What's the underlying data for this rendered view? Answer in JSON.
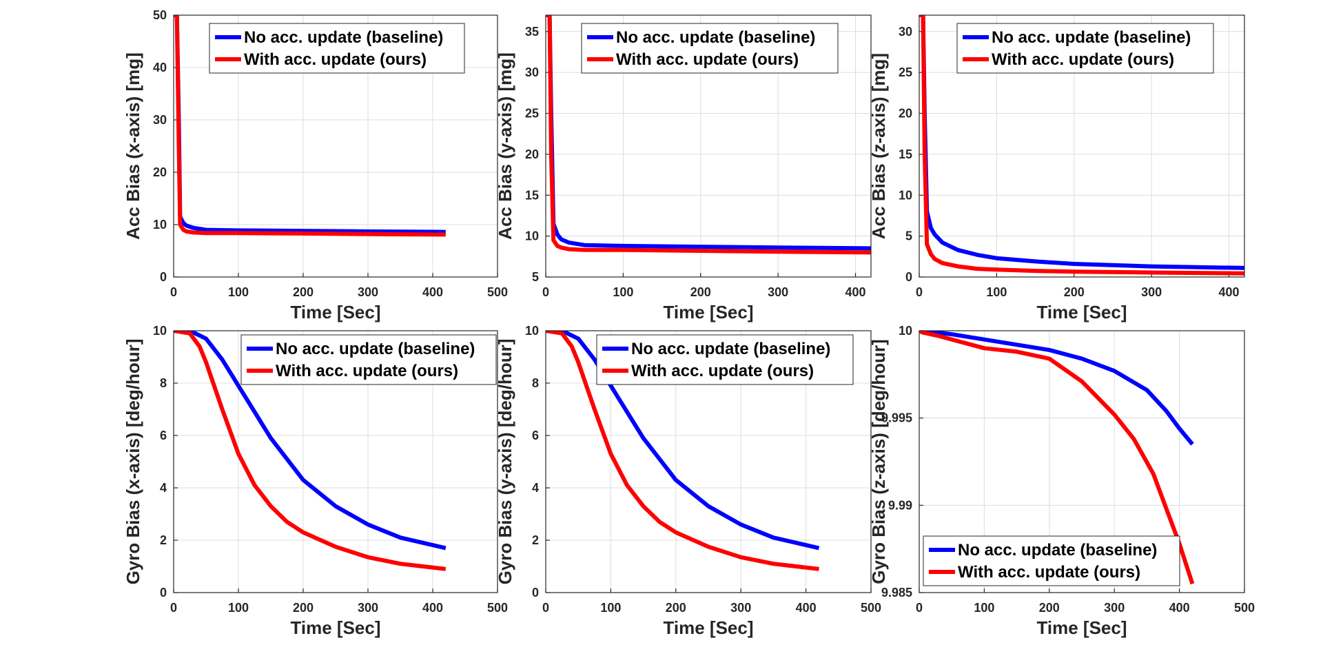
{
  "figure": {
    "colors": {
      "baseline": "#0000ff",
      "ours": "#ff0000",
      "grid": "#dcdcdc",
      "axis": "#262626"
    }
  },
  "chart_data": [
    {
      "id": "acc-x",
      "type": "line",
      "xlabel": "Time [Sec]",
      "ylabel": "Acc Bias (x-axis) [mg]",
      "xlim": [
        0,
        500
      ],
      "ylim": [
        0,
        50
      ],
      "xticks": [
        0,
        100,
        200,
        300,
        400,
        500
      ],
      "yticks": [
        0,
        10,
        20,
        30,
        40,
        50
      ],
      "legend_position": "top-right",
      "series": [
        {
          "name": "No acc. update (baseline)",
          "color": "#0000ff",
          "x": [
            0,
            5,
            8,
            10,
            15,
            20,
            30,
            50,
            100,
            200,
            300,
            420
          ],
          "y": [
            50,
            50,
            30,
            11.5,
            10.3,
            9.8,
            9.4,
            9.0,
            8.9,
            8.8,
            8.7,
            8.6
          ]
        },
        {
          "name": "With acc. update (ours)",
          "color": "#ff0000",
          "x": [
            0,
            5,
            8,
            10,
            15,
            20,
            30,
            50,
            100,
            200,
            300,
            420
          ],
          "y": [
            50,
            50,
            25,
            10,
            9.0,
            8.7,
            8.5,
            8.4,
            8.4,
            8.3,
            8.2,
            8.1
          ]
        }
      ]
    },
    {
      "id": "acc-y",
      "type": "line",
      "xlabel": "Time [Sec]",
      "ylabel": "Acc Bias (y-axis) [mg]",
      "xlim": [
        0,
        420
      ],
      "ylim": [
        5,
        37
      ],
      "xticks": [
        0,
        100,
        200,
        300,
        400
      ],
      "yticks": [
        5,
        10,
        15,
        20,
        25,
        30,
        35
      ],
      "legend_position": "top-right",
      "series": [
        {
          "name": "No acc. update (baseline)",
          "color": "#0000ff",
          "x": [
            0,
            5,
            7,
            10,
            15,
            20,
            30,
            50,
            100,
            200,
            300,
            420
          ],
          "y": [
            37,
            37,
            25,
            11.5,
            10.2,
            9.6,
            9.2,
            8.9,
            8.8,
            8.7,
            8.6,
            8.5
          ]
        },
        {
          "name": "With acc. update (ours)",
          "color": "#ff0000",
          "x": [
            0,
            5,
            7,
            10,
            15,
            20,
            30,
            50,
            100,
            200,
            300,
            420
          ],
          "y": [
            37,
            37,
            20,
            9.5,
            8.8,
            8.6,
            8.4,
            8.3,
            8.3,
            8.2,
            8.1,
            8.0
          ]
        }
      ]
    },
    {
      "id": "acc-z",
      "type": "line",
      "xlabel": "Time [Sec]",
      "ylabel": "Acc Bias (z-axis) [mg]",
      "xlim": [
        0,
        420
      ],
      "ylim": [
        0,
        32
      ],
      "xticks": [
        0,
        100,
        200,
        300,
        400
      ],
      "yticks": [
        0,
        5,
        10,
        15,
        20,
        25,
        30
      ],
      "legend_position": "top-right",
      "series": [
        {
          "name": "No acc. update (baseline)",
          "color": "#0000ff",
          "x": [
            0,
            5,
            7,
            10,
            15,
            20,
            30,
            50,
            75,
            100,
            150,
            200,
            300,
            420
          ],
          "y": [
            32,
            32,
            20,
            8,
            6,
            5.2,
            4.2,
            3.3,
            2.7,
            2.3,
            1.9,
            1.6,
            1.3,
            1.1
          ]
        },
        {
          "name": "With acc. update (ours)",
          "color": "#ff0000",
          "x": [
            0,
            5,
            7,
            10,
            15,
            20,
            30,
            50,
            75,
            100,
            150,
            200,
            300,
            420
          ],
          "y": [
            32,
            32,
            15,
            4,
            2.8,
            2.2,
            1.7,
            1.3,
            1.0,
            0.9,
            0.75,
            0.65,
            0.55,
            0.45
          ]
        }
      ]
    },
    {
      "id": "gyro-x",
      "type": "line",
      "xlabel": "Time [Sec]",
      "ylabel": "Gyro Bias (x-axis) [deg/hour]",
      "xlim": [
        0,
        500
      ],
      "ylim": [
        0,
        10
      ],
      "xticks": [
        0,
        100,
        200,
        300,
        400,
        500
      ],
      "yticks": [
        0,
        2,
        4,
        6,
        8,
        10
      ],
      "legend_position": "top-right",
      "series": [
        {
          "name": "No acc. update (baseline)",
          "color": "#0000ff",
          "x": [
            0,
            25,
            50,
            75,
            100,
            125,
            150,
            175,
            200,
            250,
            300,
            350,
            420
          ],
          "y": [
            10,
            10,
            9.7,
            8.9,
            7.9,
            6.9,
            5.9,
            5.1,
            4.3,
            3.3,
            2.6,
            2.1,
            1.7
          ]
        },
        {
          "name": "With acc. update (ours)",
          "color": "#ff0000",
          "x": [
            0,
            25,
            40,
            50,
            75,
            100,
            125,
            150,
            175,
            200,
            250,
            300,
            350,
            420
          ],
          "y": [
            10,
            9.9,
            9.4,
            8.8,
            7.0,
            5.3,
            4.1,
            3.3,
            2.7,
            2.3,
            1.75,
            1.35,
            1.1,
            0.9
          ]
        }
      ]
    },
    {
      "id": "gyro-y",
      "type": "line",
      "xlabel": "Time [Sec]",
      "ylabel": "Gyro Bias (y-axis) [deg/hour]",
      "xlim": [
        0,
        500
      ],
      "ylim": [
        0,
        10
      ],
      "xticks": [
        0,
        100,
        200,
        300,
        400,
        500
      ],
      "yticks": [
        0,
        2,
        4,
        6,
        8,
        10
      ],
      "legend_position": "top-right",
      "series": [
        {
          "name": "No acc. update (baseline)",
          "color": "#0000ff",
          "x": [
            0,
            25,
            50,
            75,
            100,
            125,
            150,
            175,
            200,
            250,
            300,
            350,
            420
          ],
          "y": [
            10,
            10,
            9.7,
            8.9,
            7.9,
            6.9,
            5.9,
            5.1,
            4.3,
            3.3,
            2.6,
            2.1,
            1.7
          ]
        },
        {
          "name": "With acc. update (ours)",
          "color": "#ff0000",
          "x": [
            0,
            25,
            40,
            50,
            75,
            100,
            125,
            150,
            175,
            200,
            250,
            300,
            350,
            420
          ],
          "y": [
            10,
            9.9,
            9.4,
            8.8,
            7.0,
            5.3,
            4.1,
            3.3,
            2.7,
            2.3,
            1.75,
            1.35,
            1.1,
            0.9
          ]
        }
      ]
    },
    {
      "id": "gyro-z",
      "type": "line",
      "xlabel": "Time [Sec]",
      "ylabel": "Gyro Bias (z-axis) [deg/hour]",
      "xlim": [
        0,
        500
      ],
      "ylim": [
        9.985,
        10
      ],
      "xticks": [
        0,
        100,
        200,
        300,
        400,
        500
      ],
      "yticks": [
        9.985,
        9.99,
        9.995,
        10
      ],
      "ytick_labels": [
        "9.985",
        "9.99",
        "9.995",
        "10"
      ],
      "legend_position": "bottom-left",
      "series": [
        {
          "name": "No acc. update (baseline)",
          "color": "#0000ff",
          "x": [
            0,
            5,
            50,
            100,
            150,
            200,
            250,
            300,
            350,
            380,
            400,
            420
          ],
          "y": [
            10,
            10,
            9.9998,
            9.9995,
            9.9992,
            9.9989,
            9.9984,
            9.9977,
            9.9966,
            9.9954,
            9.9944,
            9.9935
          ]
        },
        {
          "name": "With acc. update (ours)",
          "color": "#ff0000",
          "x": [
            0,
            5,
            30,
            60,
            100,
            150,
            200,
            250,
            300,
            330,
            360,
            380,
            400,
            420
          ],
          "y": [
            10,
            9.9999,
            9.9997,
            9.9994,
            9.999,
            9.9988,
            9.9984,
            9.9971,
            9.9952,
            9.9938,
            9.9918,
            9.9898,
            9.9878,
            9.9855
          ]
        }
      ]
    }
  ]
}
